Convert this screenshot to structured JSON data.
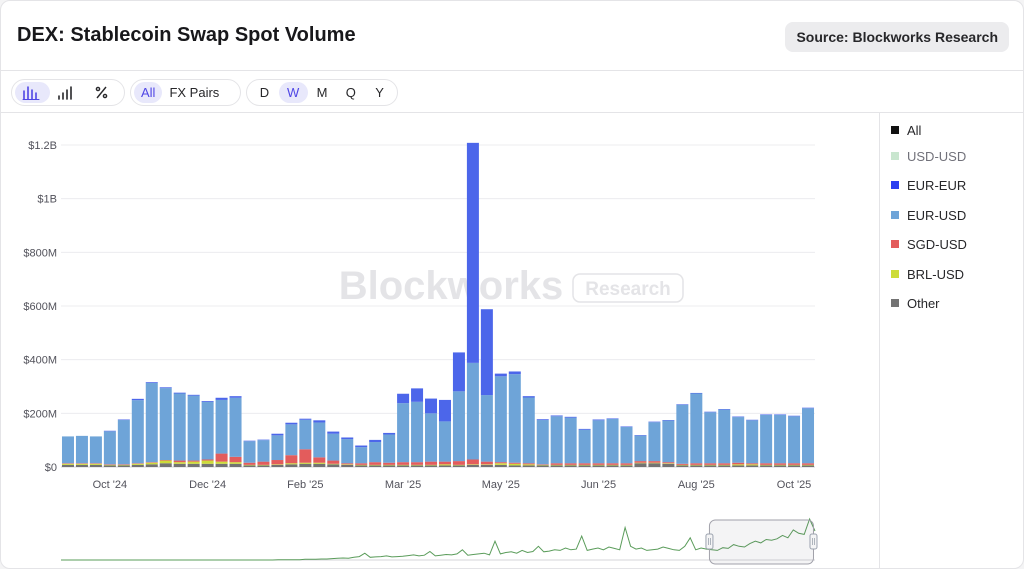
{
  "header": {
    "title": "DEX: Stablecoin Swap Spot Volume",
    "source": "Source: Blockworks Research"
  },
  "toolbar": {
    "chart_types": [
      "bar-chart-icon",
      "stepped-bars-icon",
      "percent-icon"
    ],
    "filters": [
      "All",
      "FX Pairs"
    ],
    "periods": [
      "D",
      "W",
      "M",
      "Q",
      "Y"
    ],
    "active_chart_type": 0,
    "active_filter": "All",
    "active_period": "W"
  },
  "watermark": {
    "brand": "Blockworks",
    "tag": "Research"
  },
  "legend": [
    {
      "name": "All",
      "color": "#111111",
      "muted": false
    },
    {
      "name": "USD-USD",
      "color": "#c9e6cf",
      "muted": true
    },
    {
      "name": "EUR-EUR",
      "color": "#2b3ff0",
      "muted": false
    },
    {
      "name": "EUR-USD",
      "color": "#6ea4d8",
      "muted": false
    },
    {
      "name": "SGD-USD",
      "color": "#e35c5c",
      "muted": false
    },
    {
      "name": "BRL-USD",
      "color": "#cddc39",
      "muted": false
    },
    {
      "name": "Other",
      "color": "#737373",
      "muted": false
    }
  ],
  "chart_data": {
    "type": "bar",
    "stacked": true,
    "title": "DEX: Stablecoin Swap Spot Volume",
    "xlabel": "",
    "ylabel": "",
    "ylim": [
      0,
      1200
    ],
    "y_ticks": [
      {
        "value": 0,
        "label": "$0"
      },
      {
        "value": 200,
        "label": "$200M"
      },
      {
        "value": 400,
        "label": "$400M"
      },
      {
        "value": 600,
        "label": "$600M"
      },
      {
        "value": 800,
        "label": "$800M"
      },
      {
        "value": 1000,
        "label": "$1B"
      },
      {
        "value": 1200,
        "label": "$1.2B"
      }
    ],
    "x_ticks": [
      {
        "index": 3,
        "label": "Oct '24"
      },
      {
        "index": 10,
        "label": "Dec '24"
      },
      {
        "index": 17,
        "label": "Feb '25"
      },
      {
        "index": 24,
        "label": "Mar '25"
      },
      {
        "index": 31,
        "label": "May '25"
      },
      {
        "index": 38,
        "label": "Jun '25"
      },
      {
        "index": 45,
        "label": "Aug '25"
      },
      {
        "index": 52,
        "label": "Oct '25"
      }
    ],
    "units": "USD millions",
    "grid": true,
    "legend_position": "right",
    "series": [
      {
        "name": "Other",
        "color": "#737373",
        "values": [
          8,
          8,
          8,
          6,
          6,
          8,
          10,
          14,
          12,
          12,
          12,
          12,
          12,
          6,
          6,
          8,
          10,
          12,
          12,
          10,
          8,
          6,
          6,
          6,
          6,
          6,
          6,
          6,
          6,
          8,
          8,
          8,
          6,
          6,
          6,
          6,
          6,
          6,
          6,
          6,
          6,
          14,
          14,
          12,
          6,
          6,
          6,
          6,
          6,
          6,
          6,
          6,
          6,
          6
        ]
      },
      {
        "name": "BRL-USD",
        "color": "#cddc39",
        "values": [
          4,
          4,
          4,
          2,
          2,
          4,
          6,
          10,
          6,
          8,
          12,
          8,
          6,
          2,
          2,
          2,
          4,
          4,
          4,
          2,
          2,
          2,
          2,
          2,
          2,
          2,
          2,
          4,
          2,
          2,
          2,
          6,
          6,
          4,
          2,
          2,
          2,
          2,
          2,
          2,
          2,
          2,
          2,
          2,
          2,
          2,
          2,
          2,
          4,
          4,
          2,
          2,
          2,
          2
        ]
      },
      {
        "name": "SGD-USD",
        "color": "#e35c5c",
        "values": [
          2,
          2,
          2,
          2,
          2,
          2,
          2,
          2,
          6,
          4,
          4,
          30,
          20,
          8,
          12,
          16,
          30,
          50,
          20,
          12,
          4,
          6,
          10,
          8,
          10,
          10,
          12,
          10,
          14,
          18,
          10,
          4,
          4,
          4,
          2,
          6,
          6,
          6,
          6,
          6,
          6,
          6,
          6,
          4,
          4,
          6,
          6,
          6,
          6,
          4,
          6,
          6,
          6,
          6
        ]
      },
      {
        "name": "EUR-USD",
        "color": "#6ea4d8",
        "values": [
          100,
          102,
          100,
          123,
          165,
          235,
          295,
          268,
          250,
          242,
          215,
          200,
          220,
          80,
          80,
          92,
          115,
          110,
          130,
          100,
          90,
          60,
          75,
          105,
          220,
          225,
          180,
          150,
          260,
          360,
          248,
          320,
          330,
          245,
          165,
          175,
          170,
          125,
          160,
          165,
          135,
          95,
          145,
          155,
          220,
          260,
          190,
          200,
          170,
          160,
          180,
          180,
          175,
          205
        ]
      },
      {
        "name": "EUR-EUR",
        "color": "#4c66ea",
        "values": [
          0,
          0,
          0,
          2,
          2,
          5,
          3,
          3,
          3,
          3,
          3,
          8,
          6,
          2,
          2,
          6,
          6,
          4,
          8,
          8,
          6,
          6,
          8,
          6,
          35,
          50,
          55,
          80,
          145,
          820,
          320,
          10,
          10,
          5,
          3,
          3,
          3,
          3,
          3,
          2,
          2,
          2,
          2,
          2,
          2,
          2,
          2,
          2,
          2,
          2,
          2,
          2,
          2,
          2
        ]
      },
      {
        "name": "USD-USD",
        "color": "#c9e6cf",
        "values": []
      }
    ],
    "navigator": {
      "type": "line",
      "color": "#5a9c5a",
      "values": [
        0,
        0,
        0,
        0,
        0,
        0,
        0,
        0,
        0,
        0,
        0,
        0,
        0,
        0,
        0,
        0,
        0,
        0,
        0,
        0,
        0,
        0,
        0,
        0,
        0,
        0,
        0,
        0,
        0,
        0,
        0,
        0,
        0,
        0,
        0,
        0,
        0,
        0,
        0,
        0,
        1,
        1,
        1,
        1,
        1,
        2,
        2,
        2,
        3,
        3,
        4,
        5,
        6,
        5,
        8,
        10,
        20,
        8,
        9,
        10,
        12,
        9,
        10,
        11,
        13,
        15,
        12,
        14,
        25,
        12,
        14,
        16,
        15,
        18,
        30,
        14,
        16,
        18,
        20,
        15,
        55,
        18,
        22,
        24,
        20,
        28,
        22,
        25,
        40,
        24,
        26,
        30,
        28,
        35,
        30,
        32,
        70,
        28,
        32,
        35,
        30,
        38,
        34,
        30,
        95,
        40,
        32,
        35,
        28,
        30,
        32,
        38,
        34,
        30,
        28,
        40,
        65,
        30,
        35,
        32,
        30,
        28,
        36,
        34,
        45,
        40,
        38,
        48,
        55,
        50,
        60,
        58,
        62,
        72,
        65,
        88,
        78,
        75,
        120,
        85
      ],
      "window_fraction": [
        0.86,
        0.998
      ]
    }
  }
}
